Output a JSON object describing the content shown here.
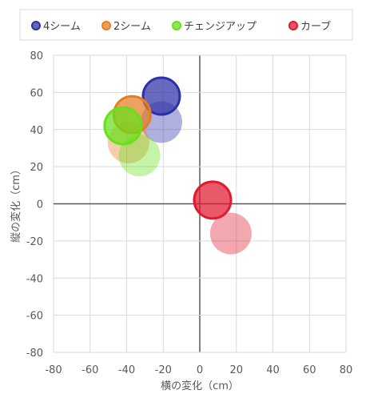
{
  "chart_data": {
    "type": "scatter",
    "title": "",
    "xlabel": "横の変化（cm）",
    "ylabel": "縦の変化（cm）",
    "xlim": [
      -80,
      80
    ],
    "ylim": [
      -80,
      80
    ],
    "xticks": [
      -80,
      -60,
      -40,
      -20,
      0,
      20,
      40,
      60,
      80
    ],
    "yticks": [
      -80,
      -60,
      -40,
      -20,
      0,
      20,
      40,
      60,
      80
    ],
    "grid": true,
    "legend_position": "top",
    "series": [
      {
        "name": "4シーム",
        "color": "#2E30A8",
        "points": [
          {
            "x": -21,
            "y": 58,
            "emphasis": true
          },
          {
            "x": -21,
            "y": 44,
            "emphasis": false
          }
        ]
      },
      {
        "name": "2シーム",
        "color": "#E57E22",
        "points": [
          {
            "x": -37,
            "y": 48,
            "emphasis": true
          },
          {
            "x": -39,
            "y": 33,
            "emphasis": false
          }
        ]
      },
      {
        "name": "チェンジアップ",
        "color": "#66E01A",
        "points": [
          {
            "x": -42,
            "y": 42,
            "emphasis": true
          },
          {
            "x": -33,
            "y": 26,
            "emphasis": false
          }
        ]
      },
      {
        "name": "カーブ",
        "color": "#E0192F",
        "points": [
          {
            "x": 7,
            "y": 2,
            "emphasis": true
          },
          {
            "x": 17,
            "y": -16,
            "emphasis": false
          }
        ]
      }
    ]
  }
}
